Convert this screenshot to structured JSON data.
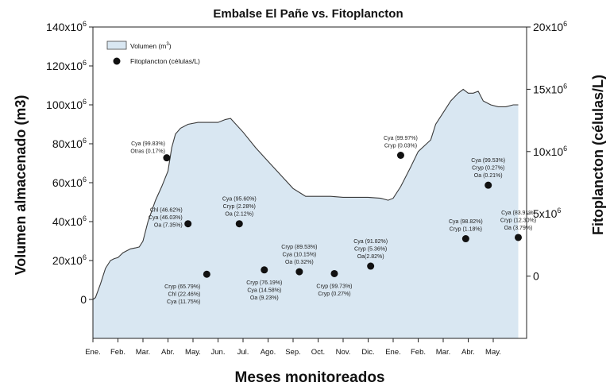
{
  "chart_data": {
    "type": "area",
    "title": "Embalse El Pañe vs. Fitoplancton",
    "xlabel": "Meses monitoreados",
    "ylabel_left": "Volumen almacenado (m3)",
    "ylabel_right": "Fitoplancton (células/L)",
    "x_tick_labels": [
      "Ene.",
      "Feb.",
      "Mar.",
      "Abr.",
      "May.",
      "Jun.",
      "Jul.",
      "Ago.",
      "Sep.",
      "Oct.",
      "Nov.",
      "Dic.",
      "Ene.",
      "Feb.",
      "Mar.",
      "Abr.",
      "May."
    ],
    "ylim_left": [
      -20000000,
      140000000
    ],
    "yticks_left": [
      {
        "value": 0,
        "label": "0"
      },
      {
        "value": 20000000,
        "label": "20x10⁶"
      },
      {
        "value": 40000000,
        "label": "40x10⁶"
      },
      {
        "value": 60000000,
        "label": "60x10⁶"
      },
      {
        "value": 80000000,
        "label": "80x10⁶"
      },
      {
        "value": 100000000,
        "label": "100x10⁶"
      },
      {
        "value": 120000000,
        "label": "120x10⁶"
      },
      {
        "value": 140000000,
        "label": "140x10⁶"
      }
    ],
    "ylim_right": [
      -5000000,
      20000000
    ],
    "yticks_right": [
      {
        "value": 0,
        "label": "0"
      },
      {
        "value": 5000000,
        "label": "5x10⁶"
      },
      {
        "value": 10000000,
        "label": "10x10⁶"
      },
      {
        "value": 15000000,
        "label": "15x10⁶"
      },
      {
        "value": 20000000,
        "label": "20x10⁶"
      }
    ],
    "legend": {
      "position": "top-left",
      "volume_label_prefix": "Volumen (m",
      "volume_label_sup": "3",
      "volume_label_suffix": ")",
      "phyto_label": "Fitoplancton (células/L)"
    },
    "colors": {
      "area_fill": "#d9e7f2",
      "area_line": "#3a3a3a",
      "points": "#111111"
    },
    "series": [
      {
        "name": "Volumen (m3)",
        "kind": "area",
        "axis": "left",
        "x": [
          0,
          0.1,
          0.3,
          0.5,
          0.7,
          0.85,
          1.0,
          1.2,
          1.5,
          1.7,
          1.85,
          2.0,
          2.2,
          2.5,
          2.75,
          3.0,
          3.15,
          3.3,
          3.5,
          3.8,
          4.2,
          5.0,
          5.3,
          5.5,
          6.0,
          6.5,
          7.0,
          7.5,
          8.0,
          8.5,
          9.5,
          10.0,
          11.0,
          11.5,
          11.8,
          12.0,
          12.3,
          12.7,
          13.0,
          13.5,
          13.7,
          14.0,
          14.3,
          14.6,
          14.8,
          15.0,
          15.2,
          15.4,
          15.6,
          15.9,
          16.2,
          16.5,
          16.8,
          17.0
        ],
        "values": [
          0,
          1000000,
          8000000,
          16000000,
          20000000,
          21000000,
          21500000,
          24000000,
          26000000,
          26500000,
          27000000,
          30000000,
          40000000,
          51000000,
          58000000,
          66000000,
          78000000,
          85000000,
          88000000,
          90000000,
          91000000,
          91000000,
          92500000,
          93000000,
          86000000,
          78000000,
          71000000,
          64000000,
          57000000,
          53000000,
          53000000,
          52500000,
          52500000,
          52000000,
          51000000,
          52000000,
          58000000,
          68000000,
          76000000,
          82000000,
          90000000,
          96000000,
          102000000,
          106000000,
          108000000,
          106000000,
          106000000,
          107000000,
          102000000,
          100000000,
          99000000,
          99000000,
          100000000,
          100000000
        ]
      },
      {
        "name": "Fitoplancton (células/L)",
        "kind": "scatter",
        "axis": "right",
        "points": [
          {
            "x": 2.95,
            "y": 9500000,
            "labels": [
              "Cya (99.83%)",
              "Otras (0.17%)"
            ],
            "label_pos": "above-left"
          },
          {
            "x": 3.8,
            "y": 4200000,
            "labels": [
              "Chl (46.62%)",
              "Cya (46.03%)",
              "Oa (7.35%)"
            ],
            "label_pos": "left"
          },
          {
            "x": 4.55,
            "y": 150000,
            "labels": [
              "Cryp (65.79%)",
              "Chl (22.46%)",
              "Cya (11.75%)"
            ],
            "label_pos": "below-left"
          },
          {
            "x": 5.85,
            "y": 4200000,
            "labels": [
              "Cya (95.60%)",
              "Cryp (2.28%)",
              "Oa (2.12%)"
            ],
            "label_pos": "above"
          },
          {
            "x": 6.85,
            "y": 500000,
            "labels": [
              "Cryp (76.19%)",
              "Cya (14.58%)",
              "Oa (9.23%)"
            ],
            "label_pos": "below"
          },
          {
            "x": 8.25,
            "y": 350000,
            "labels": [
              "Cryp (89.53%)",
              "Cya (10.15%)",
              "Oa (0.32%)"
            ],
            "label_pos": "above"
          },
          {
            "x": 9.65,
            "y": 200000,
            "labels": [
              "Cryp (99.73%)",
              "Cryp (0.27%)"
            ],
            "label_pos": "below"
          },
          {
            "x": 11.1,
            "y": 800000,
            "labels": [
              "Cya (91.82%)",
              "Cryp (5.36%)",
              "Oa(2.82%)"
            ],
            "label_pos": "above"
          },
          {
            "x": 12.3,
            "y": 9700000,
            "labels": [
              "Cya (99.97%)",
              "Cryp (0.03%)"
            ],
            "label_pos": "above"
          },
          {
            "x": 14.9,
            "y": 3000000,
            "labels": [
              "Cya (98.82%)",
              "Cryp (1.18%)"
            ],
            "label_pos": "above"
          },
          {
            "x": 15.8,
            "y": 7300000,
            "labels": [
              "Cya (99.53%)",
              "Cryp (0.27%)",
              "Oa (0.21%)"
            ],
            "label_pos": "above"
          },
          {
            "x": 17.0,
            "y": 3100000,
            "labels": [
              "Cya (83.91%)",
              "Cryp (12.30%)",
              "Oa (3.79%)"
            ],
            "label_pos": "above"
          }
        ]
      }
    ]
  }
}
